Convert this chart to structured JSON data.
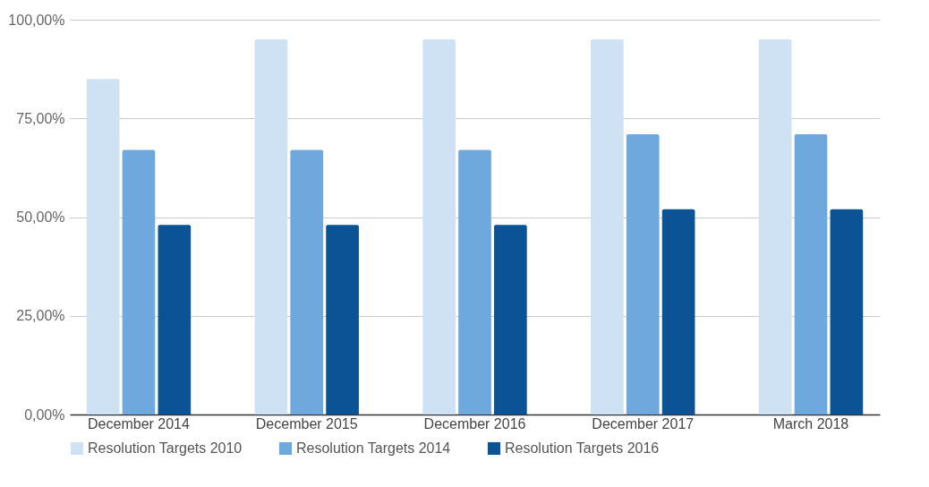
{
  "chart_data": {
    "type": "bar",
    "categories": [
      "December 2014",
      "December 2015",
      "December 2016",
      "December 2017",
      "March 2018"
    ],
    "series": [
      {
        "name": "Resolution Targets 2010",
        "color": "#cfe2f3",
        "values": [
          85,
          95,
          95,
          95,
          95
        ]
      },
      {
        "name": "Resolution Targets 2014",
        "color": "#6fa8dc",
        "values": [
          67,
          67,
          67,
          71,
          71
        ]
      },
      {
        "name": "Resolution Targets 2016",
        "color": "#0b5394",
        "values": [
          48,
          48,
          48,
          52,
          52
        ]
      }
    ],
    "ylim": [
      0,
      100
    ],
    "yticks": [
      {
        "value": 0,
        "label": "0,00%"
      },
      {
        "value": 25,
        "label": "25,00%"
      },
      {
        "value": 50,
        "label": "50,00%"
      },
      {
        "value": 75,
        "label": "75,00%"
      },
      {
        "value": 100,
        "label": "100,00%"
      }
    ],
    "grid": "y",
    "legend": "bottom"
  }
}
